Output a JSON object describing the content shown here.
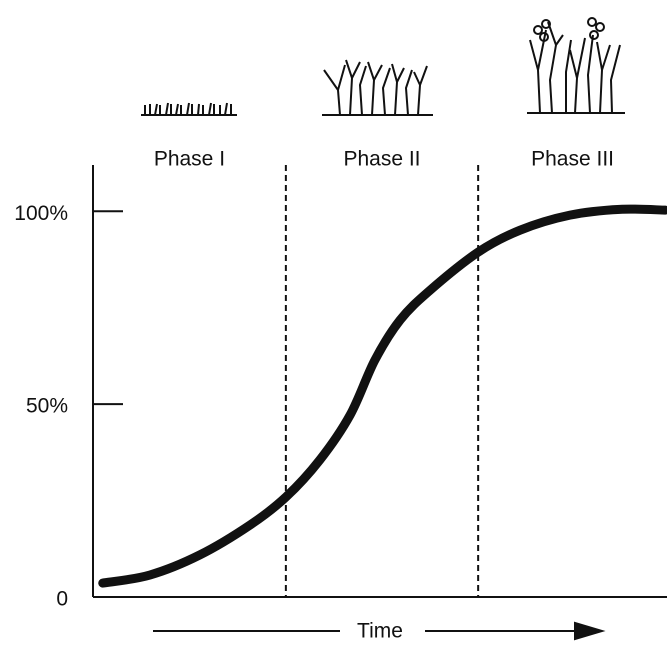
{
  "chart_data": {
    "type": "line",
    "x_label": "Time",
    "phases": [
      "Phase I",
      "Phase II",
      "Phase III"
    ],
    "dividers": [
      33.6,
      67.1
    ],
    "x": [
      1.7,
      9.9,
      18.6,
      27.4,
      33.6,
      39.5,
      44.8,
      49.1,
      53.5,
      58.7,
      67.1,
      74.4,
      83.1,
      91.8,
      99.7
    ],
    "values": [
      3.6,
      5.7,
      10.9,
      18.7,
      25.9,
      35.5,
      47.2,
      61.4,
      71.8,
      79.5,
      89.4,
      95.1,
      99.0,
      100.5,
      100.3
    ],
    "color": "#111111",
    "xlim": [
      0,
      100
    ],
    "ylim": [
      0,
      112
    ],
    "yticks": [
      0,
      {
        "value": 50,
        "label": "50%"
      },
      {
        "value": 100,
        "label": "100%"
      }
    ]
  }
}
